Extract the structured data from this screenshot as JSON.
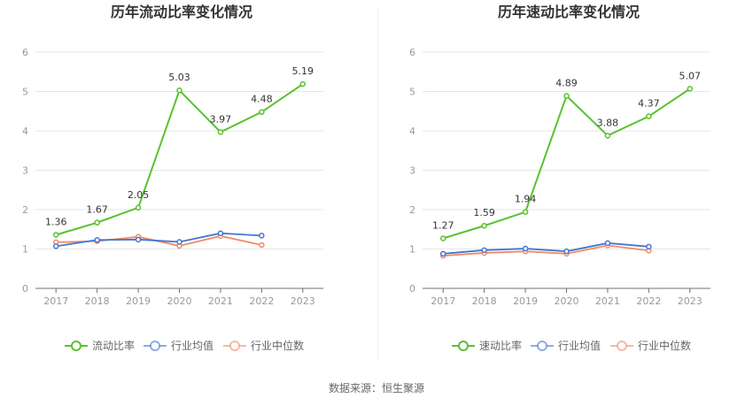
{
  "chart_data": [
    {
      "type": "line",
      "title": "历年流动比率变化情况",
      "categories": [
        "2017",
        "2018",
        "2019",
        "2020",
        "2021",
        "2022",
        "2023"
      ],
      "ylim": [
        0,
        6
      ],
      "yticks": [
        "0",
        "1",
        "2",
        "3",
        "4",
        "5",
        "6"
      ],
      "grid": true,
      "legend_position": "bottom",
      "series": [
        {
          "name": "流动比率",
          "color": "#5ac12f",
          "labeled": true,
          "values": [
            1.36,
            1.67,
            2.05,
            5.03,
            3.97,
            4.48,
            5.19
          ],
          "labels": [
            "1.36",
            "1.67",
            "2.05",
            "5.03",
            "3.97",
            "4.48",
            "5.19"
          ]
        },
        {
          "name": "行业均值",
          "color": "#4575d0",
          "labeled": false,
          "values": [
            1.07,
            1.23,
            1.24,
            1.18,
            1.4,
            1.34,
            null
          ]
        },
        {
          "name": "行业中位数",
          "color": "#f08a68",
          "labeled": false,
          "values": [
            1.17,
            1.2,
            1.31,
            1.08,
            1.33,
            1.1,
            null
          ]
        }
      ]
    },
    {
      "type": "line",
      "title": "历年速动比率变化情况",
      "categories": [
        "2017",
        "2018",
        "2019",
        "2020",
        "2021",
        "2022",
        "2023"
      ],
      "ylim": [
        0,
        6
      ],
      "yticks": [
        "0",
        "1",
        "2",
        "3",
        "4",
        "5",
        "6"
      ],
      "grid": true,
      "legend_position": "bottom",
      "series": [
        {
          "name": "速动比率",
          "color": "#5ac12f",
          "labeled": true,
          "values": [
            1.27,
            1.59,
            1.94,
            4.89,
            3.88,
            4.37,
            5.07
          ],
          "labels": [
            "1.27",
            "1.59",
            "1.94",
            "4.89",
            "3.88",
            "4.37",
            "5.07"
          ]
        },
        {
          "name": "行业均值",
          "color": "#4575d0",
          "labeled": false,
          "values": [
            0.88,
            0.97,
            1.01,
            0.94,
            1.15,
            1.06,
            null
          ]
        },
        {
          "name": "行业中位数",
          "color": "#f08a68",
          "labeled": false,
          "values": [
            0.83,
            0.9,
            0.94,
            0.88,
            1.09,
            0.96,
            null
          ]
        }
      ]
    }
  ],
  "footer": {
    "source": "数据来源：恒生聚源"
  }
}
